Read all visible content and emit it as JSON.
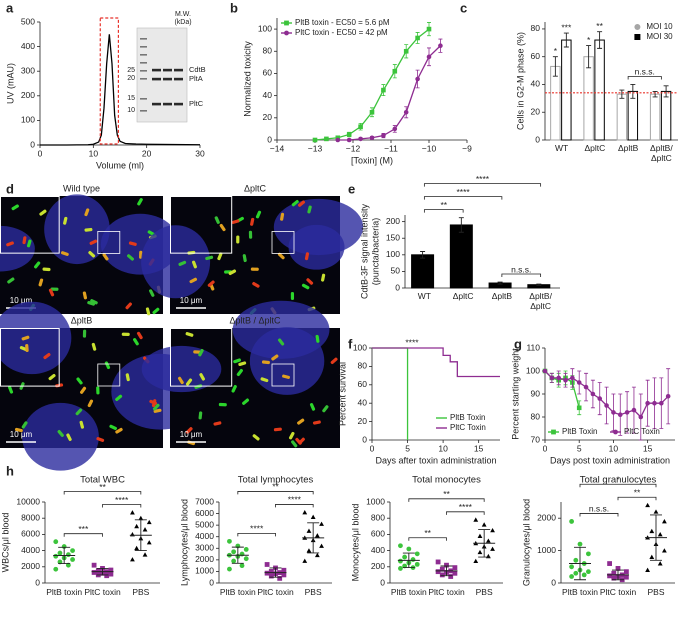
{
  "images": {
    "panel": "d",
    "items": [
      {
        "label": "Wild type",
        "scale_bar": "10 μm"
      },
      {
        "label": "ΔpltC",
        "scale_bar": "10 μm"
      },
      {
        "label": "ΔpltB",
        "scale_bar": "10 μm"
      },
      {
        "label": "ΔpltB / ΔpltC",
        "scale_bar": "10 μm"
      }
    ]
  },
  "chart_data": [
    {
      "panel": "a",
      "type": "line",
      "xlabel": "Volume (ml)",
      "ylabel": "UV (mAU)",
      "xlim": [
        0,
        30
      ],
      "ylim": [
        0,
        500
      ],
      "xticks": [
        0,
        10,
        20,
        30
      ],
      "yticks": [
        0,
        100,
        200,
        300,
        400,
        500
      ],
      "x": [
        0,
        5,
        9,
        10,
        11,
        11.5,
        12,
        12.5,
        13,
        13.5,
        14,
        14.5,
        15,
        16,
        18,
        20,
        25,
        30
      ],
      "series": [
        {
          "color": "#000000",
          "values": [
            0,
            0,
            1,
            3,
            12,
            40,
            150,
            330,
            450,
            330,
            120,
            40,
            15,
            6,
            4,
            3,
            2,
            1
          ]
        }
      ],
      "highlight": [
        11.3,
        14.7
      ],
      "highlight_color": "#e8322a",
      "inset": {
        "title": [
          "M.W.",
          "(kDa)"
        ],
        "markers": [
          25,
          20,
          15,
          10
        ],
        "bands": [
          "CdtB",
          "PltA",
          "PltC"
        ]
      }
    },
    {
      "panel": "b",
      "type": "scatter",
      "xlabel": "[Toxin] (M)",
      "ylabel": "Normalized toxicity",
      "xlim": [
        -14,
        -9
      ],
      "ylim": [
        0,
        110
      ],
      "xticks": [
        {
          "value": -14,
          "label": "−14"
        },
        {
          "value": -13,
          "label": "−13"
        },
        {
          "value": -12,
          "label": "−12"
        },
        {
          "value": -11,
          "label": "−11"
        },
        {
          "value": -10,
          "label": "−10"
        },
        {
          "value": -9,
          "label": "−9"
        }
      ],
      "yticks": [
        0,
        20,
        40,
        60,
        80,
        100
      ],
      "series": [
        {
          "name": "PltB toxin - EC50 = 5.6 pM",
          "color": "#3cc43c",
          "marker": "square",
          "x": [
            -13.0,
            -12.7,
            -12.4,
            -12.1,
            -11.8,
            -11.5,
            -11.2,
            -10.9,
            -10.6,
            -10.3,
            -10.0
          ],
          "values": [
            0,
            1,
            2,
            5,
            12,
            25,
            45,
            62,
            80,
            92,
            100
          ],
          "errors": [
            1,
            1,
            1,
            2,
            3,
            4,
            5,
            6,
            6,
            5,
            6
          ]
        },
        {
          "name": "PltC toxin - EC50 = 42 pM",
          "color": "#8e2c91",
          "marker": "circle",
          "x": [
            -12.4,
            -12.1,
            -11.8,
            -11.5,
            -11.2,
            -10.9,
            -10.6,
            -10.3,
            -10.0,
            -9.7
          ],
          "values": [
            0,
            0,
            1,
            2,
            4,
            10,
            25,
            55,
            75,
            85
          ],
          "errors": [
            0,
            1,
            1,
            1,
            2,
            3,
            5,
            8,
            8,
            6
          ]
        }
      ],
      "legend": "upper left"
    },
    {
      "panel": "c",
      "type": "bar",
      "ylabel": "Cells in G2-M phase (%)",
      "categories": [
        "WT",
        "ΔpltC",
        "ΔpltB",
        "ΔpltB/ ΔpltC"
      ],
      "ylim": [
        0,
        85
      ],
      "yticks": [
        0,
        20,
        40,
        60,
        80
      ],
      "bar_fill": "#ffffff",
      "series": [
        {
          "name": "MOI 10",
          "color": "#a6a6a6",
          "values": [
            53,
            60,
            33,
            33
          ],
          "errors": [
            7,
            8,
            3,
            2
          ],
          "labels": [
            "*",
            "*",
            null,
            null
          ]
        },
        {
          "name": "MOI 30",
          "color": "#000000",
          "values": [
            72,
            72,
            35,
            35
          ],
          "errors": [
            5,
            6,
            5,
            4
          ],
          "labels": [
            "***",
            "**",
            null,
            null
          ]
        }
      ],
      "brackets": [
        {
          "label": "n.s.s.",
          "from": 2,
          "to": 3
        }
      ],
      "reference_line": 34,
      "reference_color": "#e8322a",
      "legend": "upper right"
    },
    {
      "panel": "e",
      "type": "bar",
      "ylabel": [
        "CdtB-3F signal intensity",
        "(puncta/bacteria)"
      ],
      "categories": [
        "WT",
        "ΔpltC",
        "ΔpltB",
        "ΔpltB/ ΔpltC"
      ],
      "ylim": [
        0,
        220
      ],
      "yticks": [
        0,
        50,
        100,
        150,
        200
      ],
      "series": [
        {
          "color": "#000000",
          "values": [
            100,
            190,
            15,
            10
          ],
          "errors": [
            10,
            22,
            3,
            2
          ]
        }
      ],
      "brackets": [
        {
          "label": "****",
          "from": 0,
          "to": 3
        },
        {
          "label": "****",
          "from": 0,
          "to": 2
        },
        {
          "label": "**",
          "from": 0,
          "to": 1
        },
        {
          "label": "n.s.s.",
          "from": 2,
          "to": 3
        }
      ]
    },
    {
      "panel": "f",
      "type": "line",
      "xlabel": "Days after toxin administration",
      "ylabel": "Percent survival",
      "xlim": [
        0,
        18
      ],
      "ylim": [
        0,
        100
      ],
      "xticks": [
        0,
        5,
        10,
        15
      ],
      "yticks": [
        0,
        20,
        40,
        60,
        80,
        100
      ],
      "series": [
        {
          "name": "PltB Toxin",
          "color": "#3cc43c",
          "x": [
            0,
            5,
            5
          ],
          "values": [
            100,
            100,
            0
          ]
        },
        {
          "name": "PltC Toxin",
          "color": "#8e2c91",
          "x": [
            0,
            10,
            10,
            11,
            11,
            12,
            12,
            18
          ],
          "values": [
            100,
            100,
            92,
            92,
            85,
            85,
            69,
            69
          ]
        }
      ],
      "annotation": "****",
      "legend": "lower right"
    },
    {
      "panel": "g",
      "type": "line",
      "xlabel": "Days post toxin administration",
      "ylabel": "Percent starting weight",
      "xlim": [
        0,
        19
      ],
      "ylim": [
        70,
        110
      ],
      "xticks": [
        0,
        5,
        10,
        15
      ],
      "yticks": [
        70,
        80,
        90,
        100,
        110
      ],
      "series": [
        {
          "name": "PltB Toxin",
          "color": "#3cc43c",
          "marker": "square",
          "x": [
            0,
            1,
            2,
            3,
            4,
            5
          ],
          "values": [
            100,
            97,
            96,
            97,
            95,
            84
          ],
          "errors": [
            0,
            2,
            3,
            3,
            3,
            3
          ]
        },
        {
          "name": "PltC Toxin",
          "color": "#8e2c91",
          "marker": "circle",
          "x": [
            0,
            1,
            2,
            3,
            4,
            5,
            6,
            7,
            8,
            9,
            10,
            11,
            12,
            13,
            14,
            15,
            16,
            17,
            18
          ],
          "values": [
            100,
            97,
            97,
            96,
            97,
            95,
            93,
            90,
            88,
            85,
            82,
            81,
            82,
            83,
            80,
            86,
            86,
            86,
            89
          ],
          "errors": [
            0,
            2,
            3,
            3,
            4,
            5,
            6,
            6,
            7,
            8,
            8,
            9,
            9,
            10,
            10,
            10,
            11,
            11,
            12
          ]
        }
      ],
      "legend": "lower center"
    },
    {
      "panel": "h",
      "type": "dot",
      "title": "Total WBC",
      "ylabel": "WBCs/μl blood",
      "categories": [
        "PltB toxin",
        "PltC toxin",
        "PBS"
      ],
      "colors": [
        "#3cc43c",
        "#8e2c91",
        "#000000"
      ],
      "markers": [
        "circle",
        "square",
        "triangle"
      ],
      "ylim": [
        0,
        10000
      ],
      "yticks": [
        0,
        2000,
        4000,
        6000,
        8000,
        10000
      ],
      "points": [
        [
          5100,
          4500,
          4000,
          3700,
          3500,
          3300,
          3100,
          2900,
          2600,
          2200,
          1700
        ],
        [
          2200,
          1800,
          1600,
          1500,
          1400,
          1300,
          1200,
          1100,
          1000,
          900
        ],
        [
          8700,
          8000,
          7500,
          7000,
          6600,
          6000,
          5500,
          5000,
          4300,
          3500,
          2900
        ]
      ],
      "means": [
        3400,
        1400,
        5900
      ],
      "sds": [
        1000,
        400,
        1900
      ],
      "brackets": [
        {
          "label": "**",
          "from": 0,
          "to": 2
        },
        {
          "label": "***",
          "from": 0,
          "to": 1
        },
        {
          "label": "****",
          "from": 1,
          "to": 2
        }
      ]
    },
    {
      "type": "dot",
      "title": "Total lymphocytes",
      "ylabel": "Lymphocytes/μl blood",
      "categories": [
        "PltB toxin",
        "PltC toxin",
        "PBS"
      ],
      "colors": [
        "#3cc43c",
        "#8e2c91",
        "#000000"
      ],
      "markers": [
        "circle",
        "square",
        "triangle"
      ],
      "ylim": [
        0,
        7000
      ],
      "yticks": [
        0,
        1000,
        2000,
        3000,
        4000,
        5000,
        6000,
        7000
      ],
      "points": [
        [
          3600,
          3200,
          2900,
          2700,
          2500,
          2400,
          2300,
          2100,
          1900,
          1500,
          1200
        ],
        [
          1600,
          1300,
          1100,
          1000,
          900,
          850,
          800,
          700,
          600,
          400
        ],
        [
          6100,
          5700,
          5100,
          4500,
          4100,
          3900,
          3700,
          3200,
          2800,
          2400,
          1900
        ]
      ],
      "means": [
        2400,
        900,
        3900
      ],
      "sds": [
        700,
        400,
        1300
      ],
      "brackets": [
        {
          "label": "**",
          "from": 0,
          "to": 2
        },
        {
          "label": "****",
          "from": 0,
          "to": 1
        },
        {
          "label": "****",
          "from": 1,
          "to": 2
        }
      ]
    },
    {
      "type": "dot",
      "title": "Total monocytes",
      "ylabel": "Monocytes/μl blood",
      "categories": [
        "PltB toxin",
        "PltC toxin",
        "PBS"
      ],
      "colors": [
        "#3cc43c",
        "#8e2c91",
        "#000000"
      ],
      "markers": [
        "circle",
        "square",
        "triangle"
      ],
      "ylim": [
        0,
        1000
      ],
      "yticks": [
        0,
        200,
        400,
        600,
        800,
        1000
      ],
      "points": [
        [
          460,
          420,
          360,
          320,
          290,
          270,
          250,
          230,
          210,
          190,
          180
        ],
        [
          260,
          220,
          190,
          170,
          150,
          140,
          130,
          120,
          100,
          80
        ],
        [
          780,
          720,
          650,
          580,
          520,
          490,
          450,
          420,
          380,
          330,
          270
        ]
      ],
      "means": [
        280,
        150,
        490
      ],
      "sds": [
        90,
        60,
        170
      ],
      "brackets": [
        {
          "label": "**",
          "from": 0,
          "to": 2
        },
        {
          "label": "**",
          "from": 0,
          "to": 1
        },
        {
          "label": "****",
          "from": 1,
          "to": 2
        }
      ]
    },
    {
      "type": "dot",
      "title": "Total granulocytes",
      "ylabel": "Granulocytes/μl blood",
      "categories": [
        "PltB toxin",
        "PltC toxin",
        "PBS"
      ],
      "colors": [
        "#3cc43c",
        "#8e2c91",
        "#000000"
      ],
      "markers": [
        "circle",
        "square",
        "triangle"
      ],
      "ylim": [
        0,
        2500
      ],
      "yticks": [
        0,
        1000,
        2000
      ],
      "points": [
        [
          1900,
          1200,
          900,
          700,
          600,
          500,
          400,
          350,
          300,
          250,
          200
        ],
        [
          600,
          450,
          350,
          300,
          250,
          220,
          200,
          180,
          150,
          100
        ],
        [
          2400,
          2200,
          1900,
          1600,
          1500,
          1400,
          1200,
          1000,
          800,
          600,
          400
        ]
      ],
      "means": [
        600,
        250,
        1400
      ],
      "sds": [
        500,
        150,
        700
      ],
      "brackets": [
        {
          "label": "*",
          "from": 0,
          "to": 2
        },
        {
          "label": "n.s.s.",
          "from": 0,
          "to": 1
        },
        {
          "label": "**",
          "from": 1,
          "to": 2
        }
      ]
    }
  ]
}
